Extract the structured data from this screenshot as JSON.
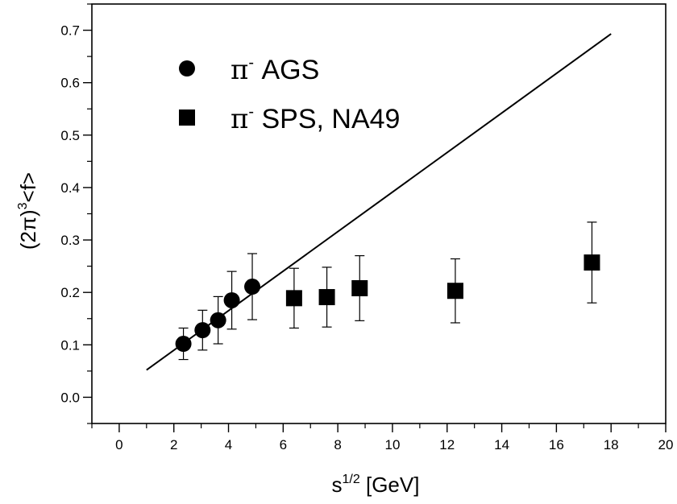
{
  "chart_data": {
    "type": "scatter",
    "xlabel": "s",
    "xlabel_sup": "1/2",
    "xlabel_suffix": " [GeV]",
    "ylabel_prefix": "(2π)",
    "ylabel_sup": "3",
    "ylabel_suffix": "<f>",
    "xlim": [
      -1,
      20
    ],
    "ylim": [
      -0.05,
      0.75
    ],
    "x_ticks": [
      0,
      2,
      4,
      6,
      8,
      10,
      12,
      14,
      16,
      18,
      20
    ],
    "y_ticks": [
      0.0,
      0.1,
      0.2,
      0.3,
      0.4,
      0.5,
      0.6,
      0.7
    ],
    "legend_position": "top-left",
    "series": [
      {
        "name": "π⁻ AGS",
        "marker": "circle",
        "points": [
          {
            "x": 2.35,
            "y": 0.102,
            "err": 0.03
          },
          {
            "x": 3.05,
            "y": 0.128,
            "err": 0.038
          },
          {
            "x": 3.62,
            "y": 0.147,
            "err": 0.045
          },
          {
            "x": 4.12,
            "y": 0.185,
            "err": 0.055
          },
          {
            "x": 4.87,
            "y": 0.211,
            "err": 0.063
          }
        ]
      },
      {
        "name": "π⁻ SPS, NA49",
        "marker": "square",
        "points": [
          {
            "x": 6.4,
            "y": 0.189,
            "err": 0.057
          },
          {
            "x": 7.6,
            "y": 0.191,
            "err": 0.057
          },
          {
            "x": 8.8,
            "y": 0.208,
            "err": 0.062
          },
          {
            "x": 12.3,
            "y": 0.203,
            "err": 0.061
          },
          {
            "x": 17.3,
            "y": 0.257,
            "err": 0.077
          }
        ]
      }
    ],
    "fit_line": {
      "x": [
        1.0,
        18.0
      ],
      "y": [
        0.052,
        0.693
      ]
    }
  },
  "legend": {
    "items": [
      {
        "symbol": "π",
        "sup": "-",
        "label": "AGS",
        "marker": "circle"
      },
      {
        "symbol": "π",
        "sup": "-",
        "label": "SPS, NA49",
        "marker": "square"
      }
    ]
  }
}
